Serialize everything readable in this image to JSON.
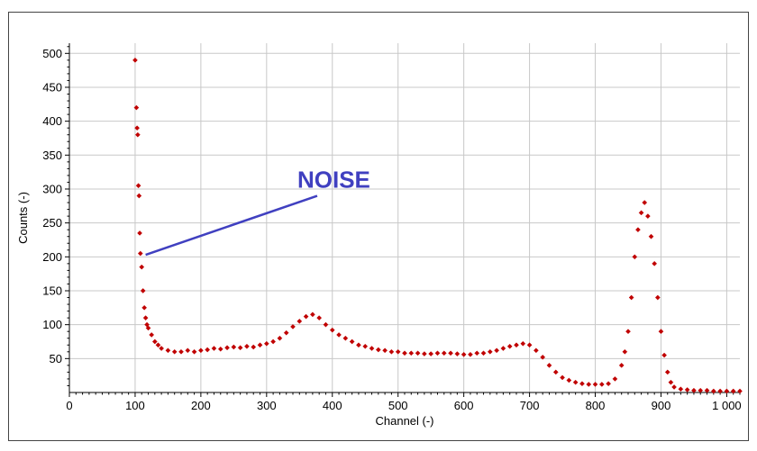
{
  "chart_data": {
    "type": "scatter",
    "xlabel": "Channel (-)",
    "ylabel": "Counts (-)",
    "xlim": [
      0,
      1020
    ],
    "ylim": [
      0,
      515
    ],
    "x_ticks": [
      0,
      100,
      200,
      300,
      400,
      500,
      600,
      700,
      800,
      900,
      1000
    ],
    "x_tick_labels": [
      "0",
      "100",
      "200",
      "300",
      "400",
      "500",
      "600",
      "700",
      "800",
      "900",
      "1 000"
    ],
    "y_ticks": [
      50,
      100,
      150,
      200,
      250,
      300,
      350,
      400,
      450,
      500
    ],
    "y_tick_labels": [
      "50",
      "100",
      "150",
      "200",
      "250",
      "300",
      "350",
      "400",
      "450",
      "500"
    ],
    "grid": true,
    "marker_color": "#C00000",
    "annotation": {
      "text": "NOISE",
      "color": "#4040C0",
      "arrow_from": [
        377,
        290
      ],
      "arrow_to": [
        116,
        203
      ]
    },
    "series": [
      {
        "x": [
          100,
          102,
          103,
          104,
          105,
          106,
          107,
          108,
          110,
          112,
          114,
          116,
          118,
          120,
          125,
          130,
          135,
          140,
          150,
          160,
          170,
          180,
          190,
          200,
          210,
          220,
          230,
          240,
          250,
          260,
          270,
          280,
          290,
          300,
          310,
          320,
          330,
          340,
          350,
          360,
          370,
          380,
          390,
          400,
          410,
          420,
          430,
          440,
          450,
          460,
          470,
          480,
          490,
          500,
          510,
          520,
          530,
          540,
          550,
          560,
          570,
          580,
          590,
          600,
          610,
          620,
          630,
          640,
          650,
          660,
          670,
          680,
          690,
          700,
          710,
          720,
          730,
          740,
          750,
          760,
          770,
          780,
          790,
          800,
          810,
          820,
          830,
          840,
          845,
          850,
          855,
          860,
          865,
          870,
          875,
          880,
          885,
          890,
          895,
          900,
          905,
          910,
          915,
          920,
          930,
          940,
          950,
          960,
          970,
          980,
          990,
          1000,
          1010,
          1020
        ],
        "y": [
          490,
          420,
          390,
          380,
          305,
          290,
          235,
          205,
          185,
          150,
          125,
          110,
          100,
          95,
          85,
          75,
          70,
          65,
          62,
          60,
          60,
          62,
          60,
          62,
          63,
          65,
          64,
          66,
          67,
          66,
          68,
          67,
          70,
          72,
          75,
          80,
          88,
          97,
          105,
          112,
          115,
          110,
          100,
          92,
          85,
          80,
          75,
          70,
          68,
          65,
          63,
          62,
          60,
          60,
          58,
          58,
          58,
          57,
          57,
          58,
          58,
          58,
          57,
          56,
          56,
          58,
          58,
          60,
          62,
          65,
          68,
          70,
          72,
          70,
          62,
          52,
          40,
          30,
          22,
          18,
          15,
          13,
          12,
          12,
          12,
          13,
          20,
          40,
          60,
          90,
          140,
          200,
          240,
          265,
          280,
          260,
          230,
          190,
          140,
          90,
          55,
          30,
          15,
          8,
          5,
          4,
          3,
          3,
          3,
          2,
          2,
          2,
          2,
          2
        ]
      }
    ]
  }
}
